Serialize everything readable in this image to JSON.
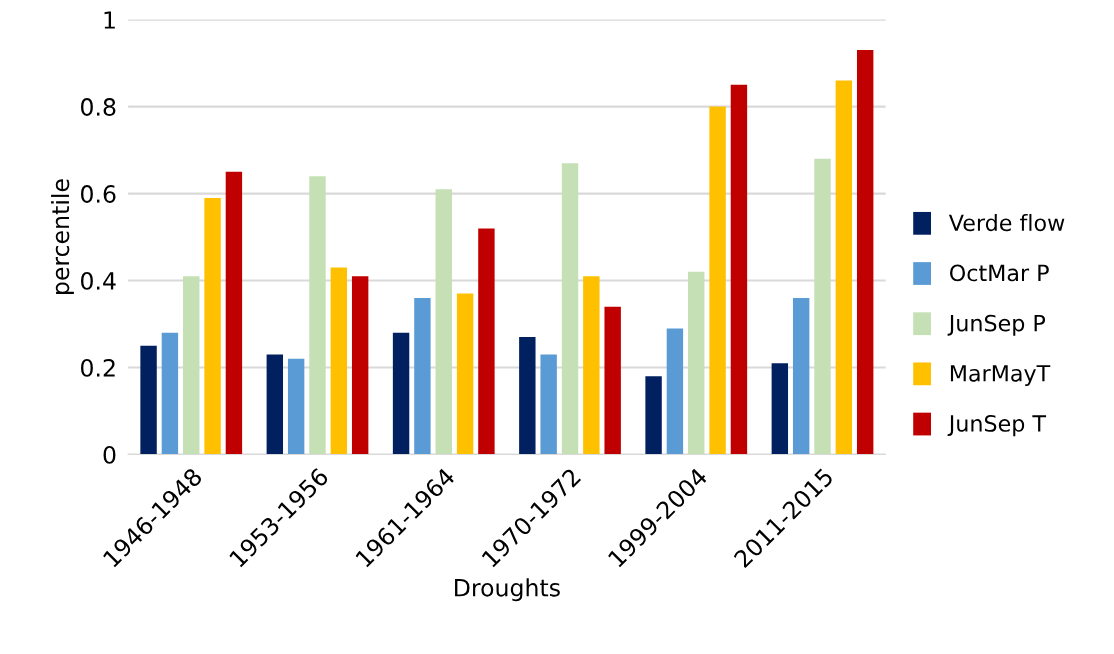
{
  "chart_data": {
    "type": "bar",
    "xlabel": "Droughts",
    "ylabel": "percentile",
    "categories": [
      "1946-1948",
      "1953-1956",
      "1961-1964",
      "1970-1972",
      "1999-2004",
      "2011-2015"
    ],
    "series": [
      {
        "name": "Verde flow",
        "color": "#002060",
        "values": [
          0.25,
          0.23,
          0.28,
          0.27,
          0.18,
          0.21
        ]
      },
      {
        "name": "OctMar P",
        "color": "#5b9bd5",
        "values": [
          0.28,
          0.22,
          0.36,
          0.23,
          0.29,
          0.36
        ]
      },
      {
        "name": "JunSep P",
        "color": "#c5e0b4",
        "values": [
          0.41,
          0.64,
          0.61,
          0.67,
          0.42,
          0.68
        ]
      },
      {
        "name": "MarMayT",
        "color": "#ffc000",
        "values": [
          0.59,
          0.43,
          0.37,
          0.41,
          0.8,
          0.86
        ]
      },
      {
        "name": "JunSep T",
        "color": "#c00000",
        "values": [
          0.65,
          0.41,
          0.52,
          0.34,
          0.85,
          0.93
        ]
      }
    ],
    "ylim": [
      0,
      1
    ],
    "yticks": [
      0,
      0.2,
      0.4,
      0.6,
      0.8,
      1
    ],
    "grid": "y",
    "legend": "right"
  }
}
